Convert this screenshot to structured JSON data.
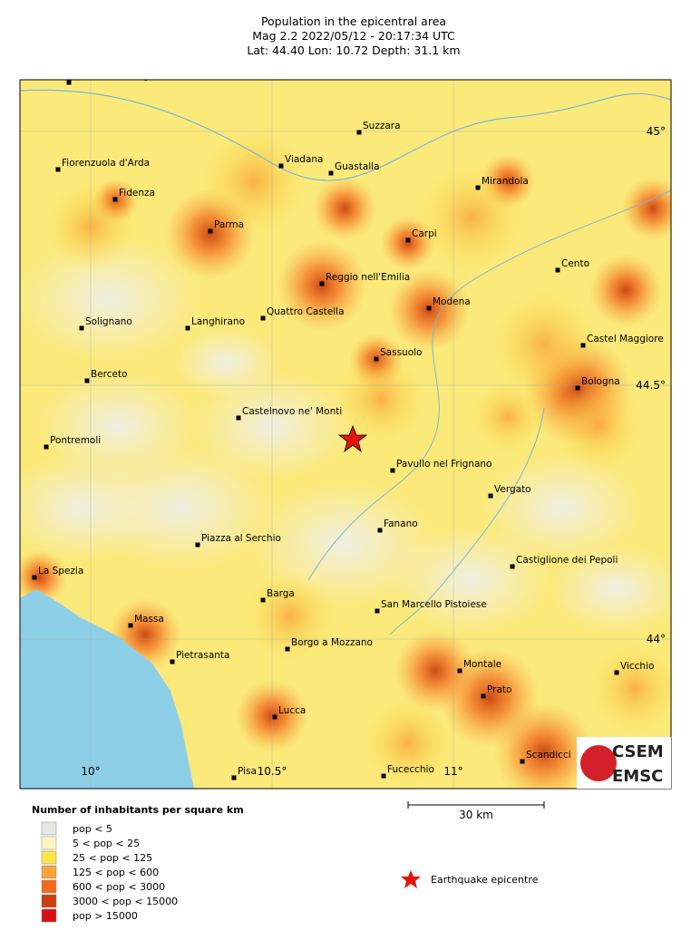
{
  "header": {
    "title": "Population in the epicentral area",
    "line2": "Mag 2.2  2022/05/12 - 20:17:34 UTC",
    "line3": "Lat: 44.40    Lon: 10.72    Depth:  31.1 km"
  },
  "cities": [
    "Monticelli d'Ongina",
    "Suzzara",
    "Viadana",
    "Guastalla",
    "Fiorenzuola d'Arda",
    "Fidenza",
    "Mirandola",
    "Parma",
    "Carpi",
    "Cento",
    "Reggio nell'Emilia",
    "Quattro Castella",
    "Modena",
    "Solignano",
    "Langhirano",
    "Castel Maggiore",
    "Sassuolo",
    "Berceto",
    "Bologna",
    "Castelnovo ne' Monti",
    "Pontremoli",
    "Pavullo nel Frignano",
    "Vergato",
    "Fanano",
    "Piazza al Serchio",
    "Castiglione dei Pepoli",
    "La Spezia",
    "Barga",
    "San Marcello Pistoiese",
    "Massa",
    "Borgo a Mozzano",
    "Pietrasanta",
    "Montale",
    "Vicchio",
    "Prato",
    "Lucca",
    "Scandicci",
    "Fucecchio",
    "Pisa"
  ],
  "grid": {
    "lat_labels": [
      "45°",
      "44.5°",
      "44°"
    ],
    "lon_labels": [
      "10°",
      "10.5°",
      "11°"
    ]
  },
  "legend": {
    "title": "Number of inhabitants per square km",
    "items": [
      {
        "label": "pop < 5",
        "color": "#e6e6e3"
      },
      {
        "label": "5 < pop < 25",
        "color": "#fdf6c0"
      },
      {
        "label": "25 < pop < 125",
        "color": "#fbe54a"
      },
      {
        "label": "125 < pop < 600",
        "color": "#f9a33a"
      },
      {
        "label": "600 < pop < 3000",
        "color": "#f26a1b"
      },
      {
        "label": "3000 < pop < 15000",
        "color": "#c9400f"
      },
      {
        "label": "pop > 15000",
        "color": "#d91010"
      }
    ]
  },
  "scale": "30 km",
  "epicentre_label": "Earthquake epicentre",
  "logo": {
    "top": "CSEM",
    "bottom": "EMSC"
  }
}
